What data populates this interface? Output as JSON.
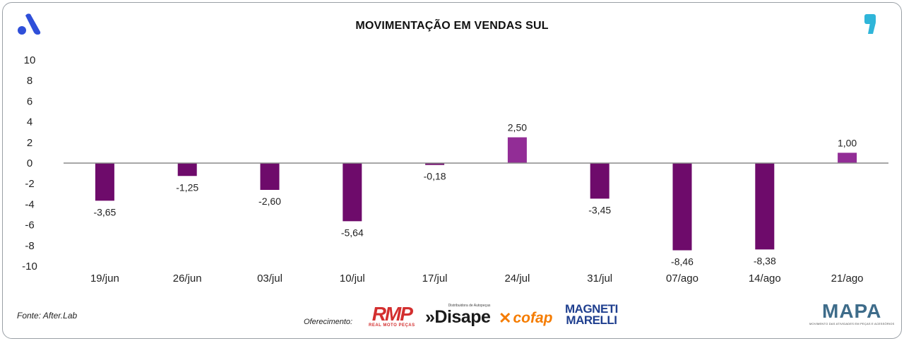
{
  "header": {
    "title": "MOVIMENTAÇÃO EM VENDAS SUL"
  },
  "footer": {
    "source": "Fonte: After.Lab",
    "sponsors_label": "Oferecimento:",
    "sponsors": {
      "rmp": {
        "name": "RMP",
        "tagline": "REAL MOTO PEÇAS"
      },
      "disape": {
        "name": "»Disape",
        "tagline": "Distribuidora de Autopeças"
      },
      "cofap": {
        "name": "cofap"
      },
      "magneti": {
        "line1": "MAGNETI",
        "line2": "MARELLI"
      }
    },
    "mapa": {
      "name": "MAPA",
      "tagline": "MOVIMENTO DAS ATIVIDADES EM PEÇAS E ACESSÓRIOS"
    }
  },
  "colors": {
    "negative": "#6e0b6b",
    "positive": "#922d96",
    "axis": "#8a8a8a",
    "logo_a": "#2f4fd9",
    "quote": "#2fb5d9"
  },
  "chart_data": {
    "type": "bar",
    "title": "MOVIMENTAÇÃO EM VENDAS SUL",
    "categories": [
      "19/jun",
      "26/jun",
      "03/jul",
      "10/jul",
      "17/jul",
      "24/jul",
      "31/jul",
      "07/ago",
      "14/ago",
      "21/ago"
    ],
    "values": [
      -3.65,
      -1.25,
      -2.6,
      -5.64,
      -0.18,
      2.5,
      -3.45,
      -8.46,
      -8.38,
      1.0
    ],
    "value_labels": [
      "-3,65",
      "-1,25",
      "-2,60",
      "-5,64",
      "-0,18",
      "2,50",
      "-3,45",
      "-8,46",
      "-8,38",
      "1,00"
    ],
    "yticks": [
      10,
      8,
      6,
      4,
      2,
      0,
      -2,
      -4,
      -6,
      -8,
      -10
    ],
    "ytick_labels": [
      "10",
      "8",
      "6",
      "4",
      "2",
      "0",
      "-2",
      "-4",
      "-6",
      "-8",
      "-10"
    ],
    "ylim": [
      -10,
      10
    ],
    "xlabel": "",
    "ylabel": "",
    "grid": false
  }
}
